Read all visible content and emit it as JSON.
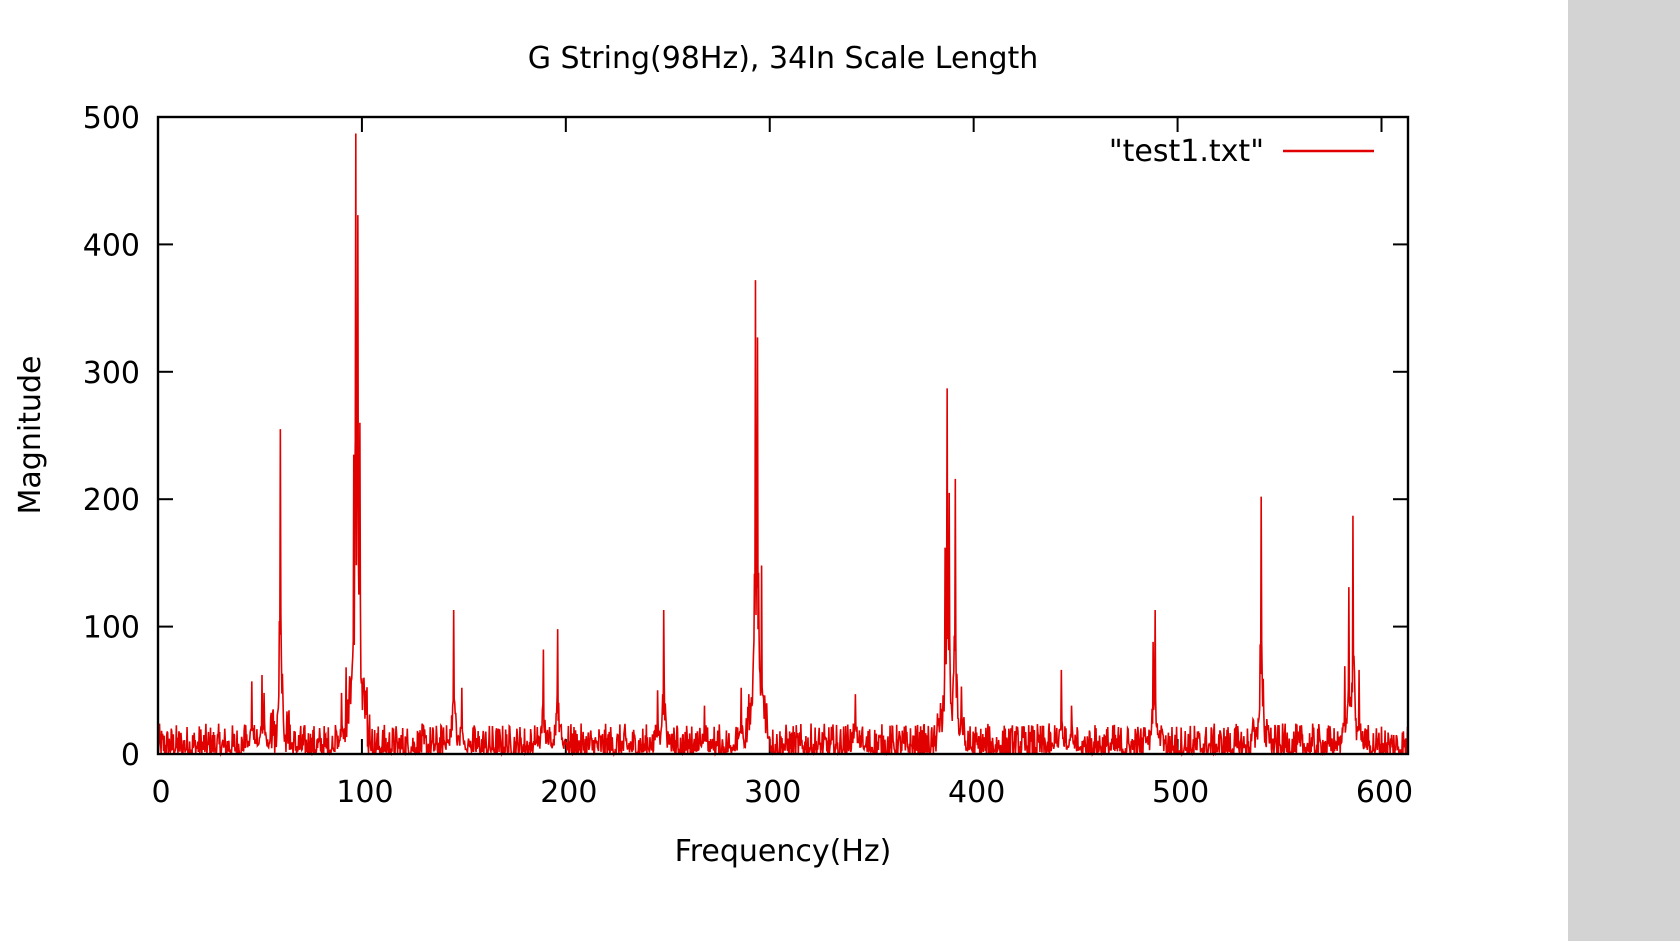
{
  "chart_data": {
    "type": "line",
    "title": "G String(98Hz), 34In Scale Length",
    "xlabel": "Frequency(Hz)",
    "ylabel": "Magnitude",
    "xlim": [
      0,
      613
    ],
    "ylim": [
      0,
      500
    ],
    "xticks": [
      0,
      100,
      200,
      300,
      400,
      500,
      600
    ],
    "yticks": [
      0,
      100,
      200,
      300,
      400,
      500
    ],
    "xtick_labels": [
      "0",
      "100",
      "200",
      "300",
      "400",
      "500",
      "600"
    ],
    "ytick_labels": [
      "0",
      "100",
      "200",
      "300",
      "400",
      "500"
    ],
    "grid": false,
    "legend_position": "top-right",
    "series": [
      {
        "name": "\"test1.txt\"",
        "color": "#e00000",
        "peaks": [
          {
            "x": 46,
            "y": 57
          },
          {
            "x": 51,
            "y": 62
          },
          {
            "x": 52,
            "y": 48
          },
          {
            "x": 60,
            "y": 255
          },
          {
            "x": 90,
            "y": 48
          },
          {
            "x": 96,
            "y": 235
          },
          {
            "x": 97,
            "y": 487
          },
          {
            "x": 98,
            "y": 423
          },
          {
            "x": 99,
            "y": 260
          },
          {
            "x": 100,
            "y": 52
          },
          {
            "x": 145,
            "y": 113
          },
          {
            "x": 149,
            "y": 52
          },
          {
            "x": 189,
            "y": 82
          },
          {
            "x": 196,
            "y": 98
          },
          {
            "x": 245,
            "y": 50
          },
          {
            "x": 248,
            "y": 113
          },
          {
            "x": 268,
            "y": 38
          },
          {
            "x": 286,
            "y": 52
          },
          {
            "x": 293,
            "y": 372
          },
          {
            "x": 294,
            "y": 327
          },
          {
            "x": 296,
            "y": 148
          },
          {
            "x": 342,
            "y": 47
          },
          {
            "x": 386,
            "y": 162
          },
          {
            "x": 387,
            "y": 287
          },
          {
            "x": 388,
            "y": 205
          },
          {
            "x": 391,
            "y": 216
          },
          {
            "x": 394,
            "y": 53
          },
          {
            "x": 443,
            "y": 66
          },
          {
            "x": 448,
            "y": 38
          },
          {
            "x": 488,
            "y": 88
          },
          {
            "x": 489,
            "y": 113
          },
          {
            "x": 541,
            "y": 202
          },
          {
            "x": 582,
            "y": 69
          },
          {
            "x": 584,
            "y": 131
          },
          {
            "x": 586,
            "y": 187
          },
          {
            "x": 589,
            "y": 66
          }
        ],
        "noise_floor": 12
      }
    ]
  }
}
